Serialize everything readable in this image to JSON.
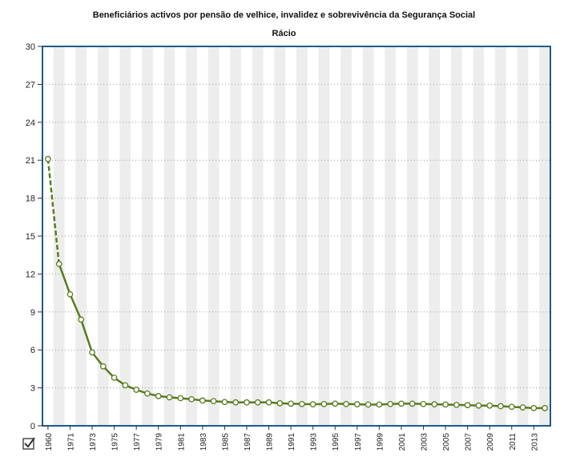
{
  "chart_data": {
    "type": "line",
    "title": "Beneficiários activos por pensão de velhice, invalidez e sobrevivência da Segurança Social",
    "subtitle": "Rácio",
    "xlabel": "",
    "ylabel": "",
    "ylim": [
      0,
      30
    ],
    "yticks": [
      0,
      3,
      6,
      9,
      12,
      15,
      18,
      21,
      24,
      27,
      30
    ],
    "x_tick_labels": [
      "1960",
      "1971",
      "1973",
      "1975",
      "1977",
      "1979",
      "1981",
      "1983",
      "1985",
      "1987",
      "1989",
      "1991",
      "1993",
      "1995",
      "1997",
      "1999",
      "2001",
      "2003",
      "2005",
      "2007",
      "2009",
      "2011",
      "2013"
    ],
    "grid": "horizontal dotted",
    "colors": {
      "line": "#5a7a1f",
      "marker_fill": "#ffffff",
      "frame": "#1f5a8c",
      "band": "#ededed"
    },
    "series": [
      {
        "x": [
          1960,
          1970,
          1971,
          1972,
          1973,
          1974,
          1975,
          1976,
          1977,
          1978,
          1979,
          1980,
          1981,
          1982,
          1983,
          1984,
          1985,
          1986,
          1987,
          1988,
          1989,
          1990,
          1991,
          1992,
          1993,
          1994,
          1995,
          1996,
          1997,
          1998,
          1999,
          2000,
          2001,
          2002,
          2003,
          2004,
          2005,
          2006,
          2007,
          2008,
          2009,
          2010,
          2011,
          2012,
          2013,
          2014
        ],
        "values": [
          21.1,
          12.8,
          10.4,
          8.4,
          5.8,
          4.7,
          3.8,
          3.2,
          2.85,
          2.55,
          2.35,
          2.25,
          2.18,
          2.1,
          2.0,
          1.95,
          1.88,
          1.85,
          1.85,
          1.85,
          1.85,
          1.78,
          1.75,
          1.72,
          1.7,
          1.72,
          1.75,
          1.72,
          1.7,
          1.68,
          1.68,
          1.72,
          1.75,
          1.75,
          1.72,
          1.7,
          1.68,
          1.65,
          1.63,
          1.6,
          1.6,
          1.55,
          1.5,
          1.45,
          1.4,
          1.4
        ]
      }
    ]
  },
  "ui": {
    "toggle_icon": "checkbox-checked-icon"
  }
}
